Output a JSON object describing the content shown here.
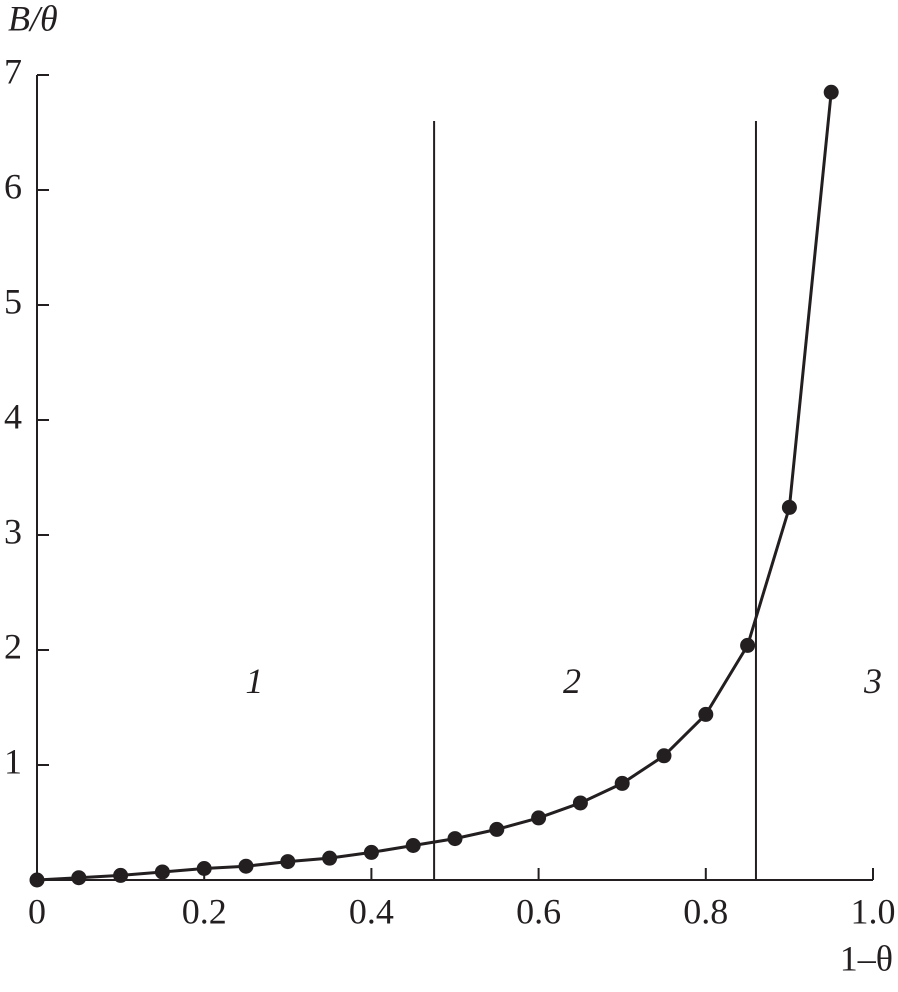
{
  "chart_data": {
    "type": "line",
    "x_label": "1–θ",
    "y_label": "B/θ",
    "x": [
      0,
      0.05,
      0.1,
      0.15,
      0.2,
      0.25,
      0.3,
      0.35,
      0.4,
      0.45,
      0.5,
      0.55,
      0.6,
      0.65,
      0.7,
      0.75,
      0.8,
      0.85,
      0.9,
      0.95
    ],
    "series": [
      {
        "color": "#231f20",
        "values": [
          0,
          0.02,
          0.04,
          0.07,
          0.1,
          0.12,
          0.16,
          0.19,
          0.24,
          0.3,
          0.36,
          0.44,
          0.54,
          0.67,
          0.84,
          1.08,
          1.44,
          2.04,
          3.24,
          6.85
        ]
      }
    ],
    "markers": true,
    "xlim": [
      0,
      1
    ],
    "ylim": [
      0,
      7
    ],
    "xticks": [
      0,
      0.2,
      0.4,
      0.6,
      0.8,
      {
        "value": 1,
        "label": "1.0"
      }
    ],
    "yticks": [
      1,
      2,
      3,
      4,
      5,
      6,
      7
    ],
    "vlines": [
      {
        "x": 0.475,
        "y_end": 6.6
      },
      {
        "x": 0.86,
        "y_end": 6.6
      }
    ],
    "annotations": [
      {
        "text": "1",
        "x": 0.26,
        "y": 1.7
      },
      {
        "text": "2",
        "x": 0.64,
        "y": 1.7
      },
      {
        "text": "3",
        "x": 1.0,
        "y": 1.7
      }
    ]
  }
}
